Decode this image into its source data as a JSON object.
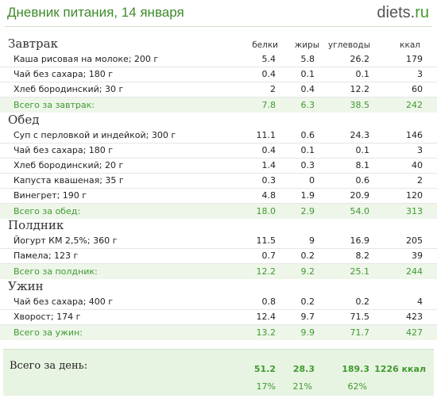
{
  "header": {
    "title": "Дневник питания, 14 января",
    "logo_main": "diets",
    "logo_dot": ".",
    "logo_tld": "ru"
  },
  "columns": {
    "protein": "белки",
    "fat": "жиры",
    "carbs": "углеводы",
    "kcal": "ккал"
  },
  "meals": [
    {
      "title": "Завтрак",
      "items": [
        {
          "name": "Каша рисовая на молоке; 200 г",
          "protein": "5.4",
          "fat": "5.8",
          "carbs": "26.2",
          "kcal": "179"
        },
        {
          "name": "Чай без сахара; 180 г",
          "protein": "0.4",
          "fat": "0.1",
          "carbs": "0.1",
          "kcal": "3"
        },
        {
          "name": "Хлеб бородинский; 30 г",
          "protein": "2",
          "fat": "0.4",
          "carbs": "12.2",
          "kcal": "60"
        }
      ],
      "total": {
        "label": "Всего за завтрак:",
        "protein": "7.8",
        "fat": "6.3",
        "carbs": "38.5",
        "kcal": "242"
      }
    },
    {
      "title": "Обед",
      "items": [
        {
          "name": "Суп с перловкой и индейкой; 300 г",
          "protein": "11.1",
          "fat": "0.6",
          "carbs": "24.3",
          "kcal": "146"
        },
        {
          "name": "Чай без сахара; 180 г",
          "protein": "0.4",
          "fat": "0.1",
          "carbs": "0.1",
          "kcal": "3"
        },
        {
          "name": "Хлеб бородинский; 20 г",
          "protein": "1.4",
          "fat": "0.3",
          "carbs": "8.1",
          "kcal": "40"
        },
        {
          "name": "Капуста квашеная; 35 г",
          "protein": "0.3",
          "fat": "0",
          "carbs": "0.6",
          "kcal": "2"
        },
        {
          "name": "Винегрет; 190 г",
          "protein": "4.8",
          "fat": "1.9",
          "carbs": "20.9",
          "kcal": "120"
        }
      ],
      "total": {
        "label": "Всего за обед:",
        "protein": "18.0",
        "fat": "2.9",
        "carbs": "54.0",
        "kcal": "313"
      }
    },
    {
      "title": "Полдник",
      "items": [
        {
          "name": "Йогурт КМ 2,5%; 360 г",
          "protein": "11.5",
          "fat": "9",
          "carbs": "16.9",
          "kcal": "205"
        },
        {
          "name": "Памела; 123 г",
          "protein": "0.7",
          "fat": "0.2",
          "carbs": "8.2",
          "kcal": "39"
        }
      ],
      "total": {
        "label": "Всего за полдник:",
        "protein": "12.2",
        "fat": "9.2",
        "carbs": "25.1",
        "kcal": "244"
      }
    },
    {
      "title": "Ужин",
      "items": [
        {
          "name": "Чай без сахара; 400 г",
          "protein": "0.8",
          "fat": "0.2",
          "carbs": "0.2",
          "kcal": "4"
        },
        {
          "name": "Хворост; 174 г",
          "protein": "12.4",
          "fat": "9.7",
          "carbs": "71.5",
          "kcal": "423"
        }
      ],
      "total": {
        "label": "Всего за ужин:",
        "protein": "13.2",
        "fat": "9.9",
        "carbs": "71.7",
        "kcal": "427"
      }
    }
  ],
  "day_total": {
    "label": "Всего за день:",
    "protein": "51.2",
    "fat": "28.3",
    "carbs": "189.3",
    "kcal": "1226 ккал",
    "protein_pct": "17%",
    "fat_pct": "21%",
    "carbs_pct": "62%"
  }
}
